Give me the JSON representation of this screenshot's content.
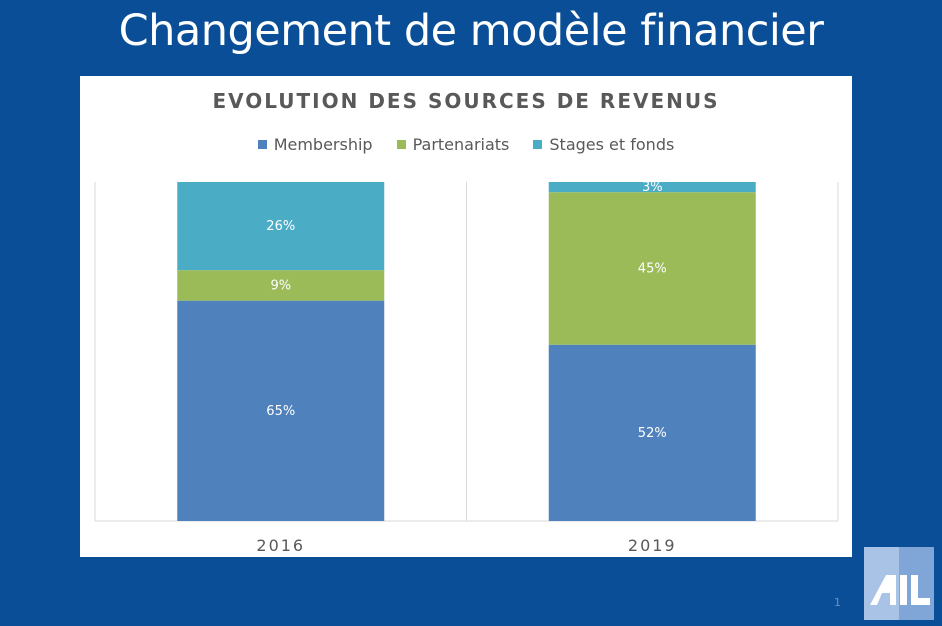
{
  "slide": {
    "title": "Changement de modèle financier",
    "page_number": "1"
  },
  "colors": {
    "background": "#0a4e97",
    "membership": "#4f81bd",
    "partenariats": "#9bbb59",
    "stages": "#4bacc6"
  },
  "logo": {
    "name": "ail-logo",
    "text": "AIL"
  },
  "chart_data": {
    "type": "bar",
    "stacked": true,
    "title": "EVOLUTION DES SOURCES DE REVENUS",
    "legend_position": "top",
    "grid": false,
    "categories": [
      "2016",
      "2019"
    ],
    "ylim": [
      0,
      100
    ],
    "series": [
      {
        "name": "Membership",
        "color": "#4f81bd",
        "values": [
          65,
          52
        ],
        "labels": [
          "65%",
          "52%"
        ]
      },
      {
        "name": "Partenariats",
        "color": "#9bbb59",
        "values": [
          9,
          45
        ],
        "labels": [
          "9%",
          "45%"
        ]
      },
      {
        "name": "Stages et fonds",
        "color": "#4bacc6",
        "values": [
          26,
          3
        ],
        "labels": [
          "26%",
          "3%"
        ]
      }
    ]
  }
}
